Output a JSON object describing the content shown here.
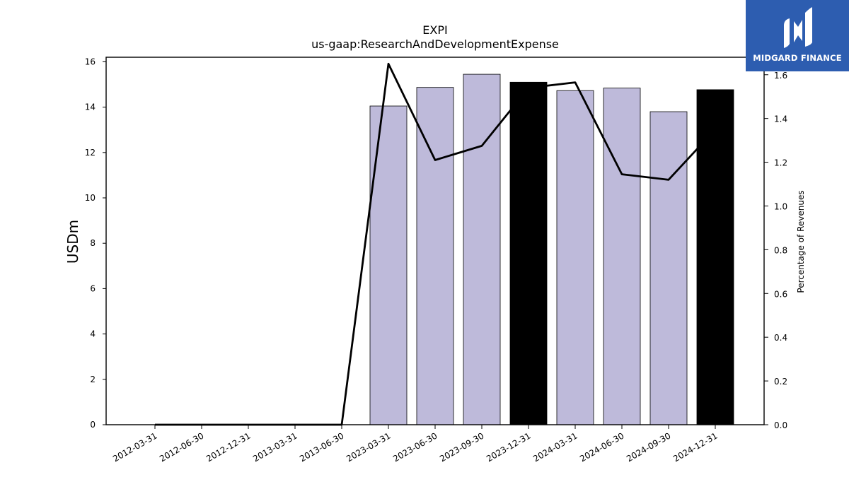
{
  "brand": {
    "name": "MIDGARD FINANCE",
    "color": "#2d5db0"
  },
  "chart_data": {
    "type": "bar",
    "title": "EXPI",
    "subtitle": "us-gaap:ResearchAndDevelopmentExpense",
    "ylabel": "USDm",
    "y2label": "Percentage of Revenues",
    "categories": [
      "2012-03-31",
      "2012-06-30",
      "2012-12-31",
      "2013-03-31",
      "2013-06-30",
      "2023-03-31",
      "2023-06-30",
      "2023-09-30",
      "2023-12-31",
      "2024-03-31",
      "2024-06-30",
      "2024-09-30",
      "2024-12-31"
    ],
    "series": [
      {
        "kind": "bar",
        "axis": "left",
        "values": [
          null,
          null,
          null,
          null,
          null,
          14.05,
          14.87,
          15.45,
          15.1,
          14.73,
          14.84,
          13.8,
          14.77
        ],
        "colors": [
          "#bebada",
          "#bebada",
          "#bebada",
          "#bebada",
          "#bebada",
          "#bebada",
          "#bebada",
          "#bebada",
          "#000000",
          "#bebada",
          "#bebada",
          "#bebada",
          "#000000"
        ]
      },
      {
        "kind": "line",
        "axis": "right",
        "values": [
          0.0,
          0.0,
          0.0,
          0.0,
          0.0,
          1.65,
          1.21,
          1.275,
          1.54,
          1.565,
          1.145,
          1.12,
          1.35
        ],
        "color": "#000000"
      }
    ],
    "ylim": [
      0,
      16.2
    ],
    "y2lim": [
      0,
      1.68
    ],
    "yticks": [
      0,
      2,
      4,
      6,
      8,
      10,
      12,
      14,
      16
    ],
    "y2ticks": [
      "0.0",
      "0.2",
      "0.4",
      "0.6",
      "0.8",
      "1.0",
      "1.2",
      "1.4",
      "1.6"
    ],
    "grid": false,
    "legend": "none"
  }
}
